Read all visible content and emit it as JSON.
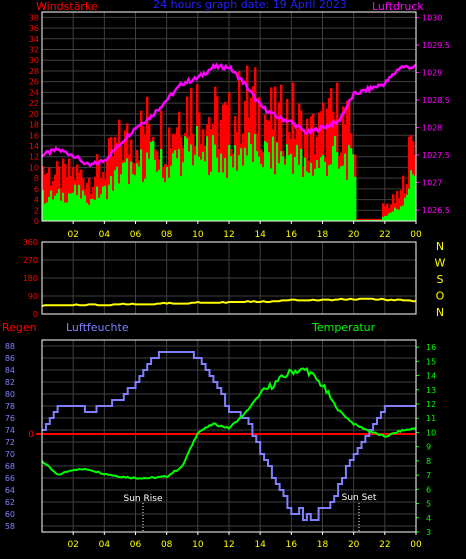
{
  "header": {
    "left_label": "Windstärke",
    "title": "24 hours graph date: 19 April 2023",
    "right_label": "Luftdruck"
  },
  "colors": {
    "wind_gust": "#ff0000",
    "wind_avg": "#00ff00",
    "pressure": "#ff00ff",
    "direction": "#ffff00",
    "humidity": "#8080ff",
    "temperature": "#00ff00",
    "rain": "#ff0000",
    "grid": "#404040",
    "frame": "#ffffff",
    "left_axis_text": "#ff0000",
    "right_axis_text": "#ff00ff",
    "time_text": "#ffff00",
    "bottom_left_axis_text": "#8080ff",
    "bottom_right_axis_text": "#00ff00"
  },
  "time_axis": {
    "labels": [
      "02",
      "04",
      "06",
      "08",
      "10",
      "12",
      "14",
      "16",
      "18",
      "20",
      "22",
      "00"
    ]
  },
  "chart_data": [
    {
      "type": "bar",
      "id": "wind_pressure",
      "left_axis": {
        "label": "Windstärke",
        "ticks": [
          "0",
          "2",
          "4",
          "6",
          "8",
          "10",
          "12",
          "14",
          "16",
          "18",
          "20",
          "22",
          "24",
          "26",
          "28",
          "30",
          "32",
          "34",
          "36",
          "38"
        ],
        "range": [
          0,
          39
        ]
      },
      "right_axis": {
        "label": "Luftdruck",
        "ticks": [
          "1026.5",
          "1027",
          "1027.5",
          "1028",
          "1028.5",
          "1029",
          "1029.5",
          "1030"
        ],
        "range": [
          1026.3,
          1030.1
        ]
      },
      "x_hours": [
        0,
        1,
        2,
        3,
        4,
        5,
        6,
        7,
        8,
        9,
        10,
        11,
        12,
        13,
        14,
        15,
        16,
        17,
        18,
        19,
        20,
        21,
        22,
        23,
        24
      ],
      "series": [
        {
          "name": "Windstärke",
          "kind": "gust",
          "values": [
            11,
            9,
            10,
            9,
            11,
            16,
            17,
            21,
            17,
            24,
            24,
            21,
            20,
            25,
            23,
            20,
            22,
            17,
            19,
            22,
            17,
            3,
            3,
            5,
            20
          ]
        },
        {
          "name": "Windstärke",
          "kind": "average",
          "values": [
            5,
            5,
            6,
            5,
            6,
            10,
            11,
            13,
            11,
            14,
            15,
            14,
            12,
            15,
            14,
            13,
            14,
            11,
            12,
            14,
            11,
            1,
            1,
            3,
            11
          ]
        },
        {
          "name": "Luftdruck",
          "kind": "pressure",
          "values": [
            1027.5,
            1027.6,
            1027.5,
            1027.3,
            1027.4,
            1027.7,
            1028.0,
            1028.2,
            1028.5,
            1028.8,
            1028.9,
            1029.1,
            1029.1,
            1028.8,
            1028.4,
            1028.2,
            1028.1,
            1027.9,
            1028.0,
            1028.1,
            1028.6,
            1028.7,
            1028.8,
            1029.1,
            1029.1
          ]
        }
      ]
    },
    {
      "type": "line",
      "id": "direction",
      "left_axis": {
        "ticks": [
          "0",
          "90",
          "180",
          "270",
          "360"
        ],
        "range": [
          0,
          360
        ]
      },
      "right_axis": {
        "ticks": [
          "N",
          "W",
          "S",
          "O",
          "N"
        ]
      },
      "x_hours": [
        0,
        1,
        2,
        3,
        4,
        5,
        6,
        7,
        8,
        9,
        10,
        11,
        12,
        13,
        14,
        15,
        16,
        17,
        18,
        19,
        20,
        21,
        22,
        23,
        24
      ],
      "series": [
        {
          "name": "direction",
          "values": [
            40,
            45,
            45,
            48,
            45,
            50,
            50,
            48,
            55,
            50,
            58,
            55,
            60,
            62,
            60,
            65,
            70,
            68,
            70,
            72,
            75,
            75,
            72,
            70,
            65
          ]
        }
      ]
    },
    {
      "type": "line",
      "id": "humidity_temperature",
      "left_axis": {
        "label": "Luftfeuchte",
        "ticks": [
          "58",
          "60",
          "62",
          "64",
          "66",
          "68",
          "70",
          "72",
          "74",
          "76",
          "78",
          "80",
          "82",
          "84",
          "86",
          "88"
        ],
        "range": [
          57,
          89
        ]
      },
      "right_axis": {
        "label": "Temperatur",
        "ticks": [
          "3",
          "4",
          "5",
          "6",
          "7",
          "8",
          "9",
          "10",
          "11",
          "12",
          "13",
          "14",
          "15",
          "16"
        ],
        "range": [
          3,
          16.5
        ]
      },
      "rain_axis": {
        "label": "Regen",
        "ticks": [
          "0"
        ]
      },
      "annotations": [
        "Sun Rise",
        "Sun Set"
      ],
      "x_hours": [
        0,
        1,
        2,
        3,
        4,
        5,
        6,
        7,
        8,
        9,
        10,
        11,
        12,
        13,
        14,
        15,
        16,
        17,
        18,
        19,
        20,
        21,
        22,
        23,
        24
      ],
      "series": [
        {
          "name": "Luftfeuchte",
          "values": [
            74,
            78,
            78,
            77,
            78,
            79,
            82,
            86,
            87,
            87,
            86,
            82,
            77,
            76,
            70,
            65,
            61,
            60,
            61,
            65,
            70,
            74,
            78,
            78,
            78
          ]
        },
        {
          "name": "Temperatur",
          "values": [
            8.0,
            7.0,
            7.4,
            7.4,
            7.1,
            6.9,
            6.8,
            6.8,
            6.9,
            7.6,
            10.0,
            10.6,
            10.3,
            11.3,
            12.7,
            13.5,
            14.3,
            14.4,
            13.3,
            11.6,
            10.6,
            10.1,
            9.7,
            10.1,
            10.3
          ]
        },
        {
          "name": "Regen",
          "values": [
            0,
            0,
            0,
            0,
            0,
            0,
            0,
            0,
            0,
            0,
            0,
            0,
            0,
            0,
            0,
            0,
            0,
            0,
            0,
            0,
            0,
            0,
            0,
            0,
            0
          ]
        }
      ]
    }
  ]
}
